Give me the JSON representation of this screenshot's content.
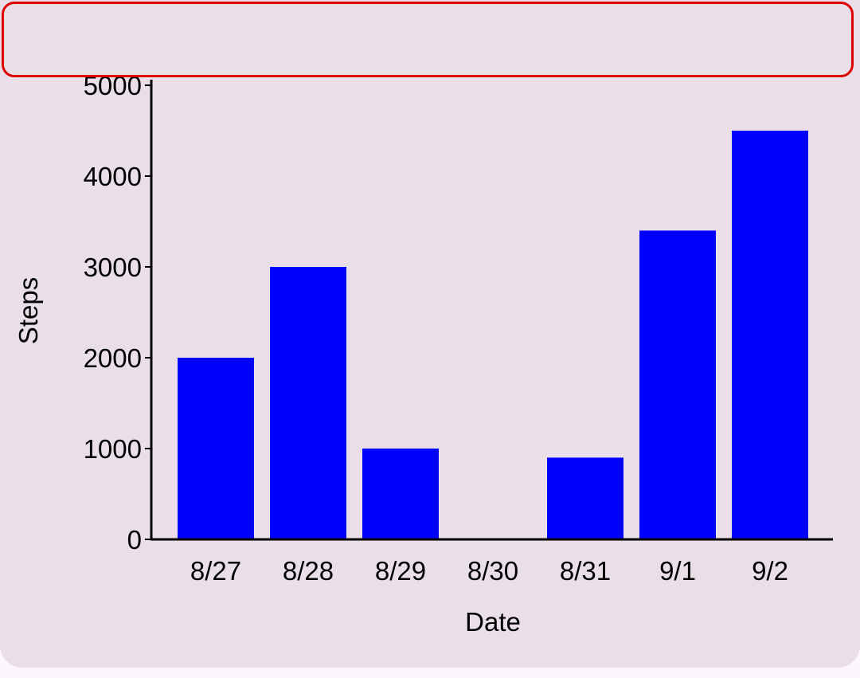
{
  "chart_data": {
    "type": "bar",
    "categories": [
      "8/27",
      "8/28",
      "8/29",
      "8/30",
      "8/31",
      "9/1",
      "9/2"
    ],
    "values": [
      2000,
      3000,
      1000,
      0,
      900,
      3400,
      4500
    ],
    "xlabel": "Date",
    "ylabel": "Steps",
    "ylim": [
      0,
      5000
    ],
    "yticks": [
      0,
      1000,
      2000,
      3000,
      4000,
      5000
    ],
    "grid": false,
    "bar_color": "#0000ff"
  },
  "colors": {
    "card_background": "#eadfe8",
    "highlight_border": "#dd0000"
  }
}
